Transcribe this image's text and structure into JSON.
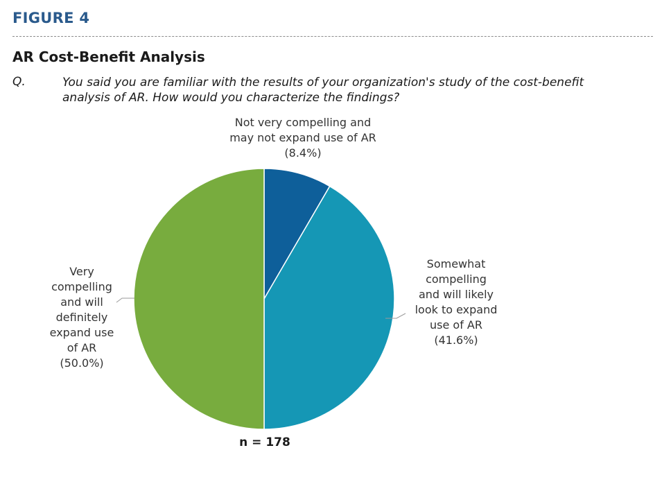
{
  "figure_label": "FIGURE 4",
  "title": "AR Cost-Benefit Analysis",
  "question": {
    "marker": "Q.",
    "lines": [
      "You said you are familiar with the results of your organization's study of the cost-benefit",
      "analysis of AR. How would you characterize the findings?"
    ]
  },
  "sample": "n = 178",
  "chart_data": {
    "type": "pie",
    "start_angle_deg": 0,
    "direction": "clockwise",
    "slices": [
      {
        "label_lines": [
          "Not very compelling and",
          "may not expand use of AR",
          "(8.4%)"
        ],
        "value": 8.4,
        "color": "#0e5f9a"
      },
      {
        "label_lines": [
          "Somewhat",
          "compelling",
          "and will likely",
          "look to expand",
          "use of AR",
          "(41.6%)"
        ],
        "value": 41.6,
        "color": "#1597b5"
      },
      {
        "label_lines": [
          "Very",
          "compelling",
          "and will",
          "definitely",
          "expand use",
          "of AR",
          "(50.0%)"
        ],
        "value": 50.0,
        "color": "#78ac3e"
      }
    ]
  }
}
